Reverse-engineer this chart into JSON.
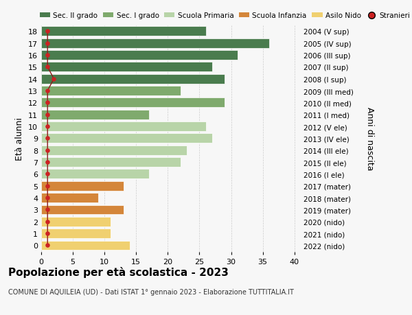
{
  "ages": [
    18,
    17,
    16,
    15,
    14,
    13,
    12,
    11,
    10,
    9,
    8,
    7,
    6,
    5,
    4,
    3,
    2,
    1,
    0
  ],
  "right_labels": [
    "2004 (V sup)",
    "2005 (IV sup)",
    "2006 (III sup)",
    "2007 (II sup)",
    "2008 (I sup)",
    "2009 (III med)",
    "2010 (II med)",
    "2011 (I med)",
    "2012 (V ele)",
    "2013 (IV ele)",
    "2014 (III ele)",
    "2015 (II ele)",
    "2016 (I ele)",
    "2017 (mater)",
    "2018 (mater)",
    "2019 (mater)",
    "2020 (nido)",
    "2021 (nido)",
    "2022 (nido)"
  ],
  "bar_values": [
    26,
    36,
    31,
    27,
    29,
    22,
    29,
    17,
    26,
    27,
    23,
    22,
    17,
    13,
    9,
    13,
    11,
    11,
    14
  ],
  "bar_colors": [
    "#4a7c4e",
    "#4a7c4e",
    "#4a7c4e",
    "#4a7c4e",
    "#4a7c4e",
    "#7faa6d",
    "#7faa6d",
    "#7faa6d",
    "#b8d4a8",
    "#b8d4a8",
    "#b8d4a8",
    "#b8d4a8",
    "#b8d4a8",
    "#d4863a",
    "#d4863a",
    "#d4863a",
    "#f0d070",
    "#f0d070",
    "#f0d070"
  ],
  "stranieri_values": [
    1,
    1,
    1,
    1,
    2,
    1,
    1,
    1,
    1,
    1,
    1,
    1,
    1,
    1,
    1,
    1,
    1,
    1,
    1
  ],
  "legend_labels": [
    "Sec. II grado",
    "Sec. I grado",
    "Scuola Primaria",
    "Scuola Infanzia",
    "Asilo Nido",
    "Stranieri"
  ],
  "legend_colors": [
    "#4a7c4e",
    "#7faa6d",
    "#b8d4a8",
    "#d4863a",
    "#f0d070",
    "#cc2222"
  ],
  "title": "Popolazione per età scolastica - 2023",
  "subtitle": "COMUNE DI AQUILEIA (UD) - Dati ISTAT 1° gennaio 2023 - Elaborazione TUTTITALIA.IT",
  "ylabel_left": "Età alunni",
  "ylabel_right": "Anni di nascita",
  "xlim": [
    0,
    41
  ],
  "background_color": "#f7f7f7",
  "grid_color": "#cccccc"
}
